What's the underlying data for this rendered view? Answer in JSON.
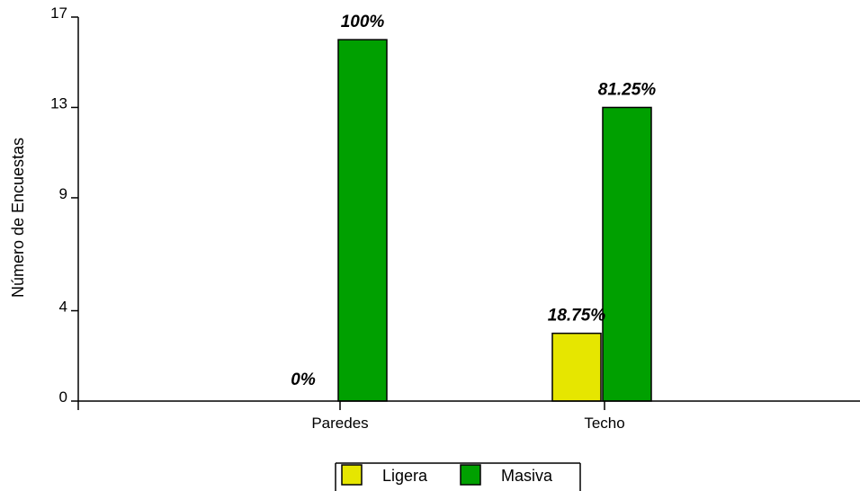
{
  "chart_data": {
    "type": "bar",
    "categories": [
      "Paredes",
      "Techo"
    ],
    "series": [
      {
        "name": "Ligera",
        "values": [
          0,
          3
        ],
        "labels": [
          "0%",
          "18.75%"
        ],
        "color": "#e6e600"
      },
      {
        "name": "Masiva",
        "values": [
          16,
          13
        ],
        "labels": [
          "100%",
          "81.25%"
        ],
        "color": "#00a000"
      }
    ],
    "yticks": [
      0,
      4,
      9,
      13,
      17
    ],
    "ylim": [
      0,
      17
    ],
    "ylabel": "Número de Encuestas",
    "xlabel": "",
    "grid": false,
    "legend_position": "bottom-center"
  }
}
